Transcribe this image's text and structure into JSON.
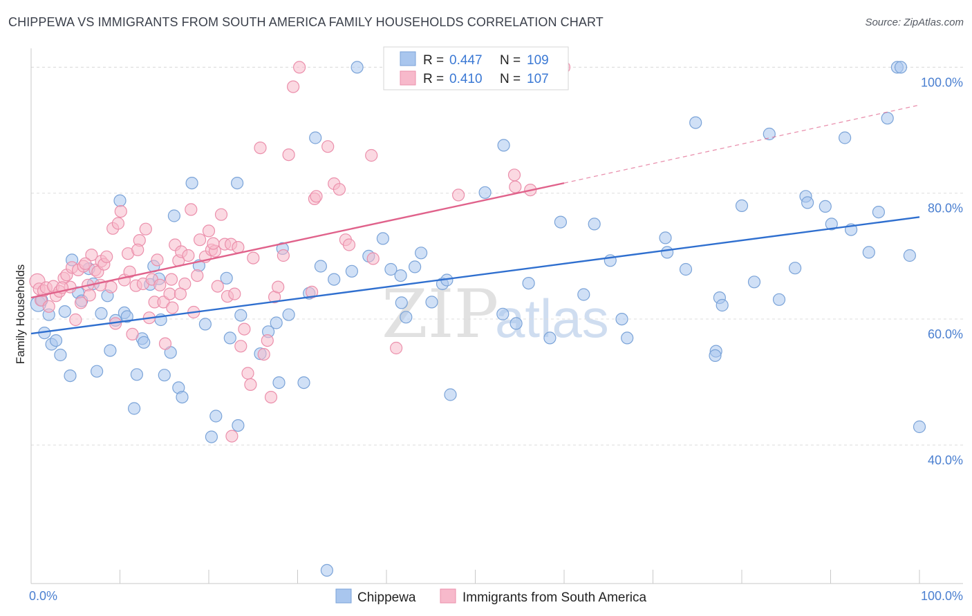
{
  "title": "CHIPPEWA VS IMMIGRANTS FROM SOUTH AMERICA FAMILY HOUSEHOLDS CORRELATION CHART",
  "source": "Source: ZipAtlas.com",
  "colors": {
    "blue_fill": "#a9c6ee",
    "blue_stroke": "#7aa3d8",
    "blue_line": "#2f6fcf",
    "pink_fill": "#f7b9cb",
    "pink_stroke": "#eb8fab",
    "pink_line": "#e0628b",
    "label_blue": "#4a7fd0",
    "grid": "#dddddd"
  },
  "chart_data": {
    "type": "scatter",
    "title": "CHIPPEWA VS IMMIGRANTS FROM SOUTH AMERICA FAMILY HOUSEHOLDS CORRELATION CHART",
    "xlabel": "",
    "ylabel": "Family Households",
    "xlim": [
      0,
      100
    ],
    "ylim": [
      18,
      103
    ],
    "x_tick_labels": [
      "0.0%",
      "100.0%"
    ],
    "y_ticks": [
      40,
      60,
      80,
      100
    ],
    "y_tick_labels": [
      "40.0%",
      "60.0%",
      "80.0%",
      "100.0%"
    ],
    "grid": true,
    "watermark": {
      "part1": "ZIP",
      "part2": "atlas"
    },
    "stats": [
      {
        "r_label": "R =",
        "r": "0.447",
        "n_label": "N =",
        "n": "109"
      },
      {
        "r_label": "R =",
        "r": "0.410",
        "n_label": "N =",
        "n": "107"
      }
    ],
    "series": [
      {
        "name": "Chippewa",
        "trend": {
          "x0": 0,
          "y0": 57.7,
          "x1": 100,
          "y1": 76.2,
          "dashed_to": null
        },
        "points": [
          [
            0.8,
            62.4
          ],
          [
            1.2,
            63.0
          ],
          [
            1.5,
            57.8
          ],
          [
            2.0,
            60.7
          ],
          [
            2.3,
            56.0
          ],
          [
            2.8,
            56.6
          ],
          [
            3.3,
            54.3
          ],
          [
            3.8,
            61.2
          ],
          [
            4.4,
            51.0
          ],
          [
            4.6,
            69.4
          ],
          [
            5.3,
            64.2
          ],
          [
            5.7,
            62.9
          ],
          [
            6.5,
            68.0
          ],
          [
            7.0,
            65.6
          ],
          [
            7.4,
            51.7
          ],
          [
            7.9,
            60.9
          ],
          [
            8.6,
            63.7
          ],
          [
            8.9,
            55.0
          ],
          [
            9.5,
            59.8
          ],
          [
            10.0,
            78.8
          ],
          [
            10.5,
            61.0
          ],
          [
            10.8,
            60.4
          ],
          [
            11.6,
            45.8
          ],
          [
            11.9,
            51.2
          ],
          [
            12.5,
            56.9
          ],
          [
            12.7,
            56.3
          ],
          [
            13.4,
            65.5
          ],
          [
            13.8,
            68.4
          ],
          [
            14.4,
            66.4
          ],
          [
            14.6,
            59.9
          ],
          [
            15.0,
            51.1
          ],
          [
            15.7,
            54.7
          ],
          [
            16.1,
            76.4
          ],
          [
            16.6,
            49.1
          ],
          [
            17.0,
            47.6
          ],
          [
            18.1,
            81.6
          ],
          [
            18.9,
            68.5
          ],
          [
            19.6,
            59.2
          ],
          [
            20.8,
            44.6
          ],
          [
            20.3,
            41.3
          ],
          [
            22.0,
            66.5
          ],
          [
            22.4,
            57.0
          ],
          [
            23.3,
            43.1
          ],
          [
            23.6,
            60.6
          ],
          [
            23.2,
            81.6
          ],
          [
            25.8,
            54.5
          ],
          [
            26.7,
            58.0
          ],
          [
            27.6,
            59.4
          ],
          [
            28.3,
            71.2
          ],
          [
            27.9,
            49.9
          ],
          [
            29.0,
            60.7
          ],
          [
            30.7,
            49.9
          ],
          [
            31.3,
            64.1
          ],
          [
            32.0,
            88.8
          ],
          [
            32.6,
            68.4
          ],
          [
            33.3,
            20.1
          ],
          [
            34.1,
            66.3
          ],
          [
            36.1,
            67.6
          ],
          [
            36.7,
            100.0
          ],
          [
            39.6,
            72.8
          ],
          [
            38.0,
            70.0
          ],
          [
            40.5,
            67.9
          ],
          [
            41.6,
            66.9
          ],
          [
            41.7,
            62.6
          ],
          [
            42.2,
            60.3
          ],
          [
            43.2,
            68.3
          ],
          [
            43.9,
            70.5
          ],
          [
            45.1,
            62.7
          ],
          [
            46.3,
            65.6
          ],
          [
            46.8,
            66.2
          ],
          [
            47.2,
            48.0
          ],
          [
            51.1,
            80.1
          ],
          [
            53.2,
            87.6
          ],
          [
            53.1,
            60.8
          ],
          [
            54.6,
            59.3
          ],
          [
            56.0,
            65.7
          ],
          [
            58.4,
            57.0
          ],
          [
            59.6,
            75.4
          ],
          [
            62.2,
            63.9
          ],
          [
            63.4,
            75.1
          ],
          [
            65.2,
            69.3
          ],
          [
            66.5,
            60.0
          ],
          [
            67.1,
            57.0
          ],
          [
            71.4,
            72.9
          ],
          [
            71.6,
            70.6
          ],
          [
            73.7,
            67.9
          ],
          [
            74.8,
            91.2
          ],
          [
            77.5,
            63.4
          ],
          [
            77.8,
            62.2
          ],
          [
            77.1,
            54.9
          ],
          [
            77.0,
            54.2
          ],
          [
            80.0,
            78.0
          ],
          [
            81.4,
            65.9
          ],
          [
            83.1,
            89.4
          ],
          [
            84.2,
            63.1
          ],
          [
            86.0,
            68.1
          ],
          [
            87.2,
            79.5
          ],
          [
            87.4,
            78.5
          ],
          [
            89.4,
            77.9
          ],
          [
            90.1,
            75.1
          ],
          [
            91.6,
            88.8
          ],
          [
            92.3,
            74.2
          ],
          [
            94.3,
            70.6
          ],
          [
            95.4,
            77.0
          ],
          [
            96.4,
            91.9
          ],
          [
            97.5,
            100.0
          ],
          [
            97.9,
            100.0
          ],
          [
            98.9,
            70.1
          ],
          [
            100.0,
            42.9
          ]
        ]
      },
      {
        "name": "Immigrants from South America",
        "trend": {
          "x0": 0,
          "y0": 63.4,
          "x1": 60,
          "y1": 81.6,
          "dashed_to": 100,
          "dashed_y1": 94.0
        },
        "points": [
          [
            0.7,
            66.0
          ],
          [
            0.9,
            64.8
          ],
          [
            1.1,
            63.0
          ],
          [
            1.4,
            64.5
          ],
          [
            1.7,
            65.0
          ],
          [
            2.0,
            62.0
          ],
          [
            2.5,
            65.2
          ],
          [
            2.8,
            63.7
          ],
          [
            3.2,
            64.4
          ],
          [
            3.7,
            66.5
          ],
          [
            4.0,
            67.0
          ],
          [
            4.4,
            65.1
          ],
          [
            4.6,
            68.2
          ],
          [
            5.0,
            59.9
          ],
          [
            5.3,
            67.8
          ],
          [
            5.6,
            62.6
          ],
          [
            5.9,
            68.4
          ],
          [
            6.4,
            65.4
          ],
          [
            6.6,
            63.8
          ],
          [
            6.8,
            70.2
          ],
          [
            7.2,
            67.8
          ],
          [
            7.5,
            67.5
          ],
          [
            7.9,
            69.2
          ],
          [
            8.2,
            68.7
          ],
          [
            8.5,
            69.9
          ],
          [
            9.0,
            65.1
          ],
          [
            9.2,
            74.4
          ],
          [
            9.5,
            59.3
          ],
          [
            9.8,
            75.2
          ],
          [
            10.1,
            77.1
          ],
          [
            10.5,
            66.2
          ],
          [
            10.9,
            70.4
          ],
          [
            11.1,
            67.5
          ],
          [
            11.4,
            57.6
          ],
          [
            11.8,
            65.3
          ],
          [
            12.2,
            72.5
          ],
          [
            12.6,
            65.6
          ],
          [
            12.9,
            74.3
          ],
          [
            13.3,
            60.2
          ],
          [
            13.6,
            66.3
          ],
          [
            13.9,
            62.7
          ],
          [
            14.2,
            69.4
          ],
          [
            14.5,
            65.4
          ],
          [
            14.9,
            62.7
          ],
          [
            15.1,
            56.1
          ],
          [
            15.6,
            64.0
          ],
          [
            15.9,
            61.8
          ],
          [
            16.2,
            71.8
          ],
          [
            16.6,
            69.3
          ],
          [
            16.9,
            70.7
          ],
          [
            17.3,
            65.6
          ],
          [
            17.7,
            70.1
          ],
          [
            18.0,
            77.4
          ],
          [
            18.3,
            61.1
          ],
          [
            18.7,
            66.9
          ],
          [
            19.0,
            72.6
          ],
          [
            19.6,
            69.9
          ],
          [
            20.0,
            74.0
          ],
          [
            20.3,
            71.0
          ],
          [
            20.7,
            70.8
          ],
          [
            21.0,
            65.2
          ],
          [
            21.4,
            76.6
          ],
          [
            21.8,
            71.9
          ],
          [
            22.1,
            63.6
          ],
          [
            22.5,
            71.9
          ],
          [
            22.9,
            64.0
          ],
          [
            23.3,
            71.4
          ],
          [
            23.6,
            55.7
          ],
          [
            24.0,
            58.4
          ],
          [
            24.4,
            51.4
          ],
          [
            24.7,
            49.6
          ],
          [
            25.0,
            69.7
          ],
          [
            25.8,
            87.2
          ],
          [
            26.2,
            54.4
          ],
          [
            26.6,
            56.6
          ],
          [
            27.0,
            47.6
          ],
          [
            27.4,
            63.5
          ],
          [
            27.8,
            65.1
          ],
          [
            28.4,
            70.1
          ],
          [
            29.0,
            86.1
          ],
          [
            29.5,
            96.9
          ],
          [
            30.2,
            100.0
          ],
          [
            31.6,
            64.3
          ],
          [
            31.9,
            79.1
          ],
          [
            32.1,
            79.5
          ],
          [
            33.4,
            87.4
          ],
          [
            34.1,
            81.5
          ],
          [
            34.7,
            80.6
          ],
          [
            35.4,
            72.6
          ],
          [
            35.8,
            71.8
          ],
          [
            38.3,
            86.0
          ],
          [
            38.5,
            69.6
          ],
          [
            41.1,
            55.4
          ],
          [
            48.1,
            79.7
          ],
          [
            54.4,
            82.9
          ],
          [
            54.5,
            81.0
          ],
          [
            59.7,
            100.0
          ],
          [
            60.0,
            100.0
          ],
          [
            56.2,
            80.5
          ],
          [
            22.6,
            41.4
          ],
          [
            16.8,
            64.0
          ],
          [
            12.0,
            71.0
          ],
          [
            20.5,
            72.0
          ],
          [
            15.8,
            66.3
          ],
          [
            7.8,
            65.4
          ],
          [
            6.1,
            68.8
          ],
          [
            3.5,
            65.0
          ]
        ]
      }
    ]
  }
}
